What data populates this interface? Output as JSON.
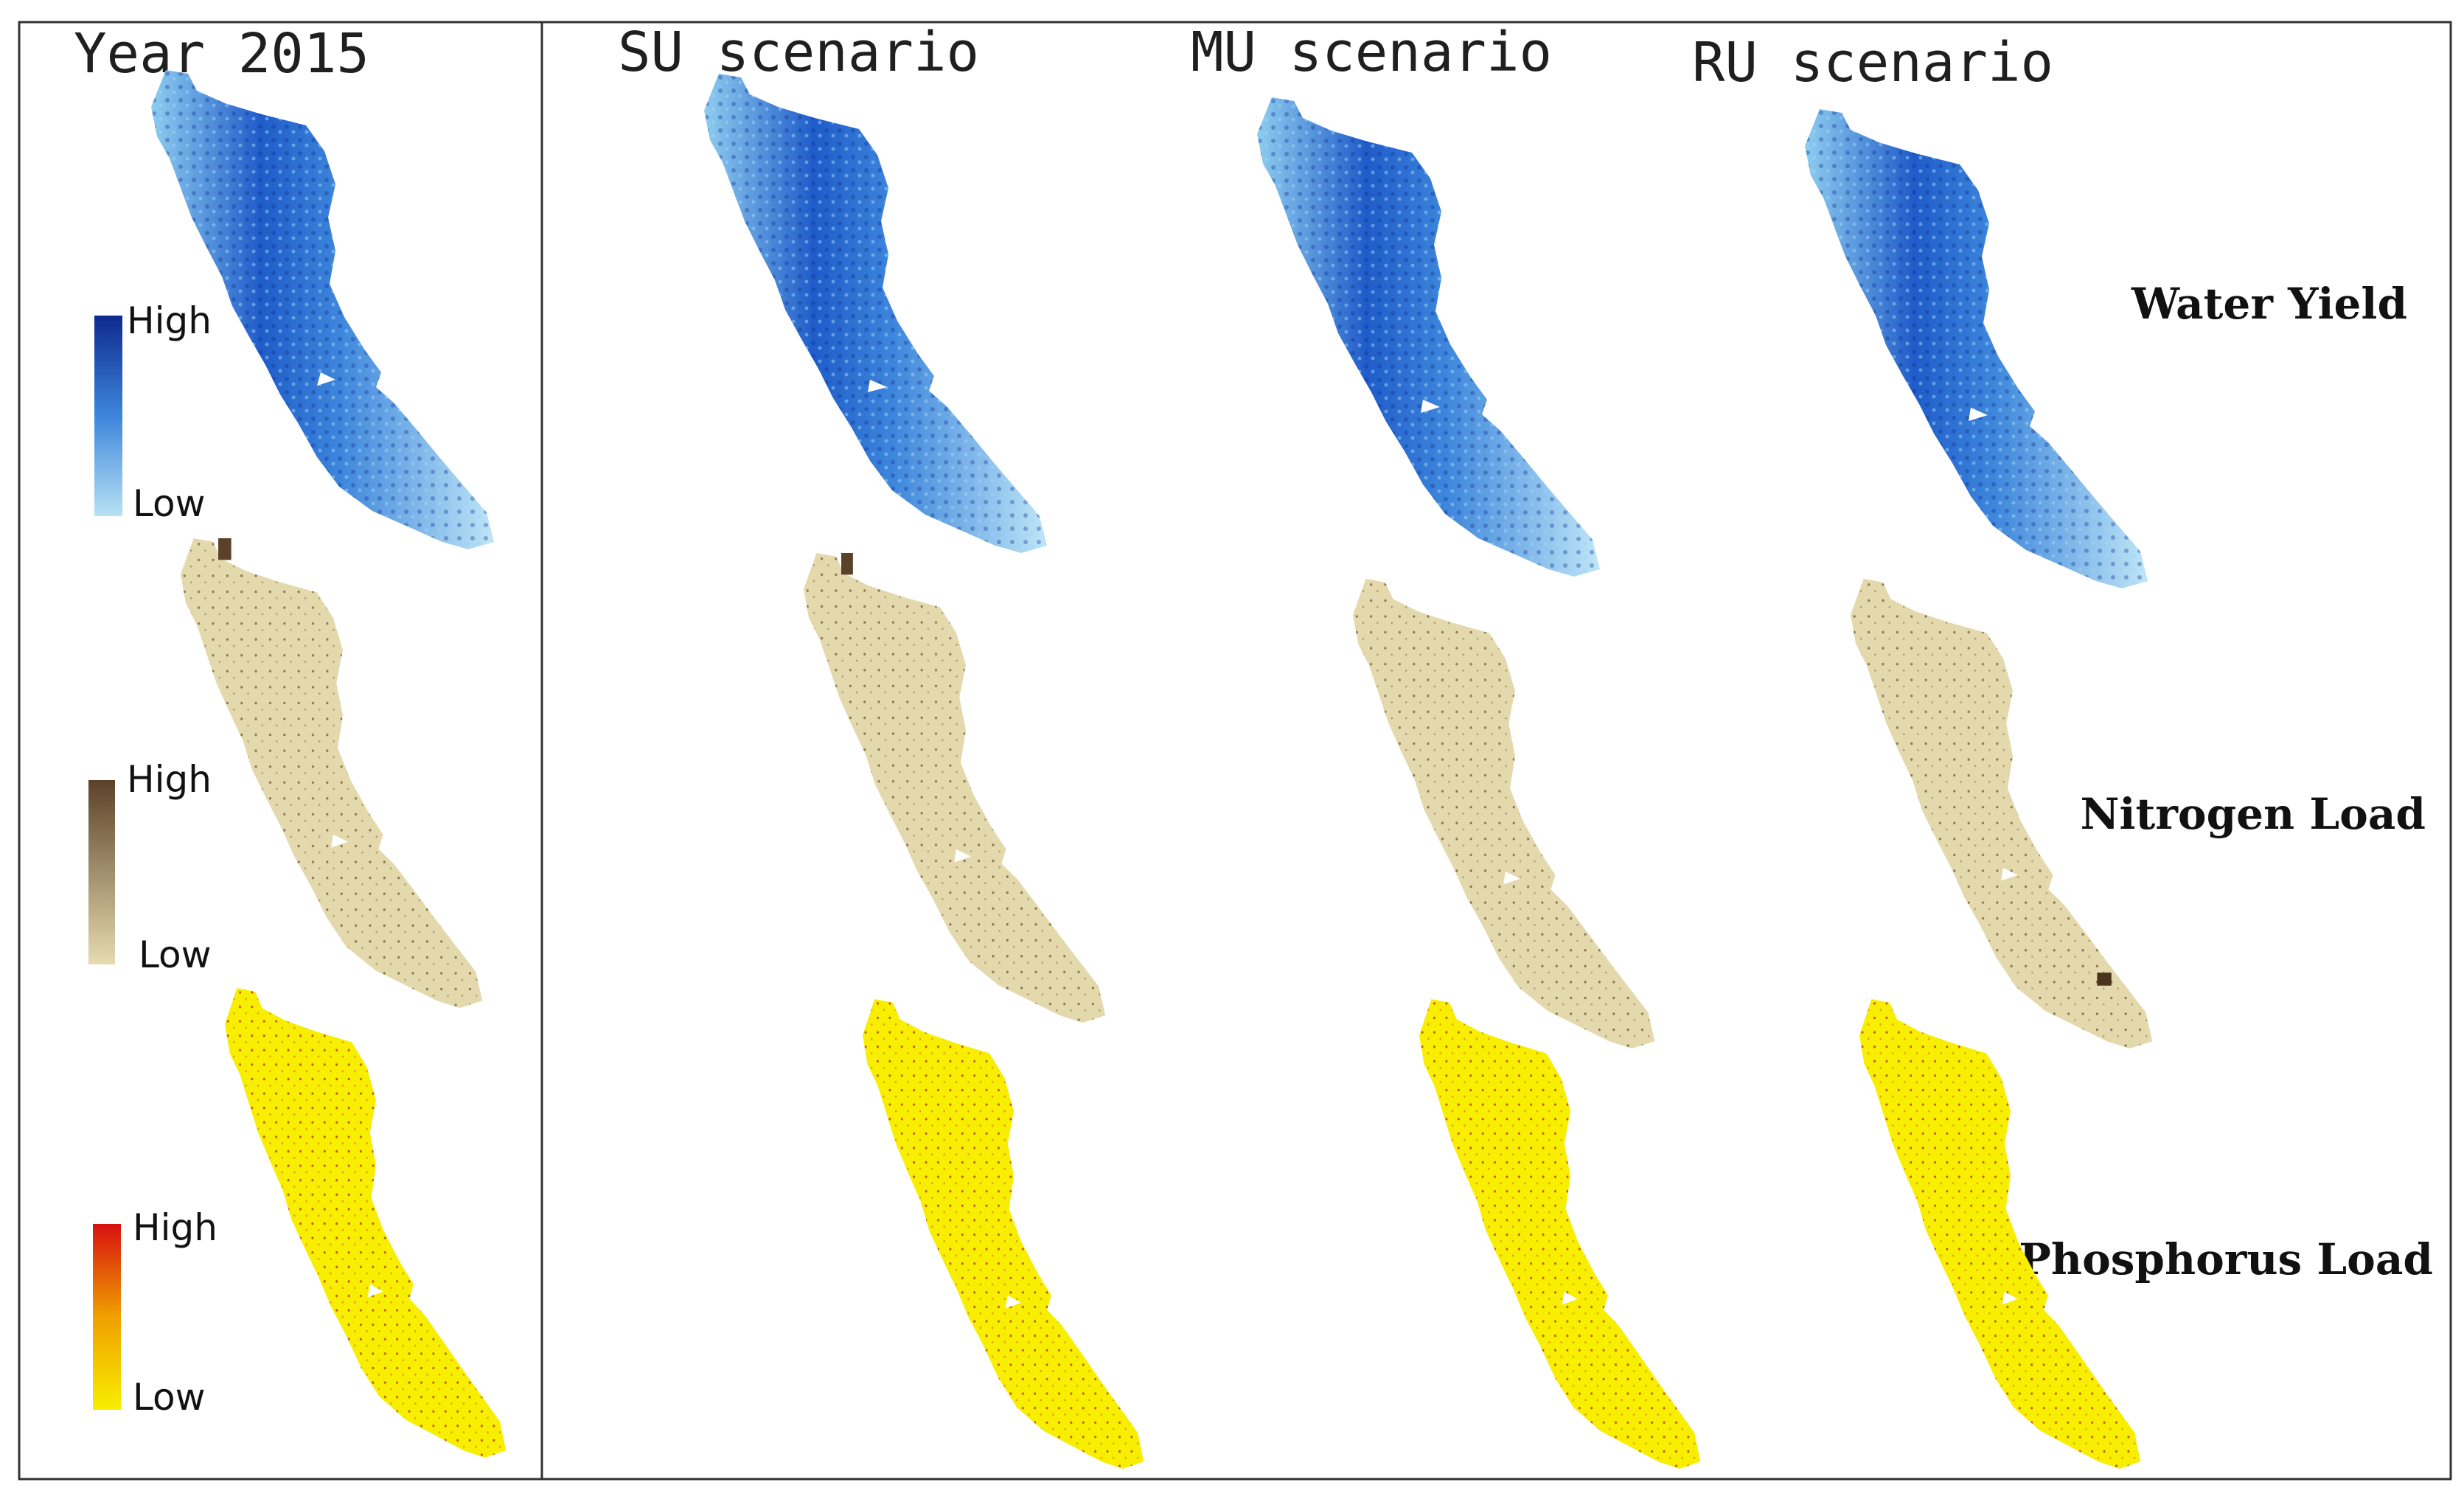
{
  "headers": {
    "year": "Year 2015",
    "su": "SU scenario",
    "mu": "MU scenario",
    "ru": "RU scenario"
  },
  "rows": [
    {
      "id": "water",
      "label": "Water Yield",
      "colors": {
        "low": "#b8e2f5",
        "mid": "#3d86dc",
        "high": "#0d2a8e"
      }
    },
    {
      "id": "nitrogen",
      "label": "Nitrogen Load",
      "colors": {
        "low": "#e6dcb0",
        "high": "#5b4128"
      }
    },
    {
      "id": "phosphorus",
      "label": "Phosphorus Load",
      "colors": {
        "low": "#f7ee00",
        "mid": "#f0a000",
        "high": "#d81010"
      }
    }
  ],
  "legend": {
    "high": "High",
    "low": "Low"
  },
  "colors": {
    "frame": "#333333",
    "pattern_water_light": "#8fcdf0",
    "pattern_nitrogen_dot": "#6b4a2a",
    "pattern_phosphorus_dot": "#b0281e"
  }
}
